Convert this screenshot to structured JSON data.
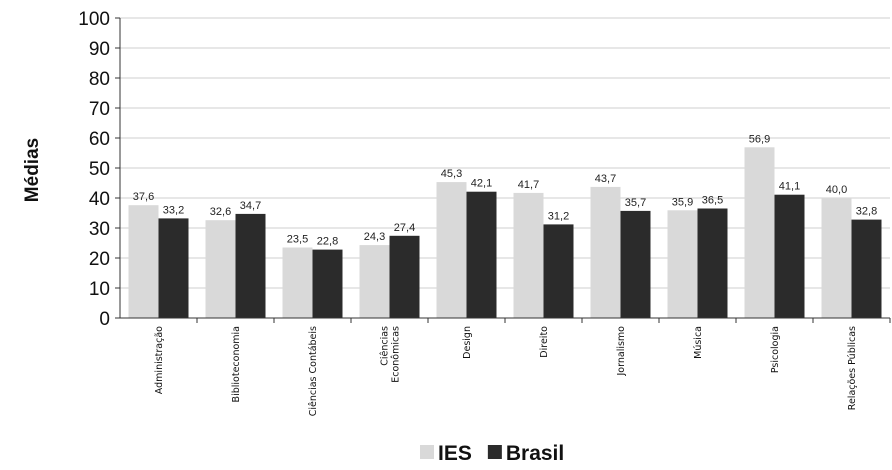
{
  "chart_data": {
    "type": "bar",
    "ylabel": "Médias",
    "ylim": [
      0,
      100
    ],
    "yticks": [
      0,
      10,
      20,
      30,
      40,
      50,
      60,
      70,
      80,
      90,
      100
    ],
    "grid": true,
    "legend_position": "bottom",
    "categories": [
      [
        "Administração"
      ],
      [
        "Biblioteconomia"
      ],
      [
        "Ciências Contábeis"
      ],
      [
        "Ciências",
        "Econômicas"
      ],
      [
        "Design"
      ],
      [
        "Direito"
      ],
      [
        "Jornalismo"
      ],
      [
        "Música"
      ],
      [
        "Psicologia"
      ],
      [
        "Relações Públicas"
      ]
    ],
    "series": [
      {
        "name": "IES",
        "color": "#d9d9d9",
        "values": [
          37.6,
          32.6,
          23.5,
          24.3,
          45.3,
          41.7,
          43.7,
          35.9,
          56.9,
          40.0
        ],
        "labels": [
          "37,6",
          "32,6",
          "23,5",
          "24,3",
          "45,3",
          "41,7",
          "43,7",
          "35,9",
          "56,9",
          "40,0"
        ]
      },
      {
        "name": "Brasil",
        "color": "#2b2b2b",
        "values": [
          33.2,
          34.7,
          22.8,
          27.4,
          42.1,
          31.2,
          35.7,
          36.5,
          41.1,
          32.8
        ],
        "labels": [
          "33,2",
          "34,7",
          "22,8",
          "27,4",
          "42,1",
          "31,2",
          "35,7",
          "36,5",
          "41,1",
          "32,8"
        ]
      }
    ]
  }
}
